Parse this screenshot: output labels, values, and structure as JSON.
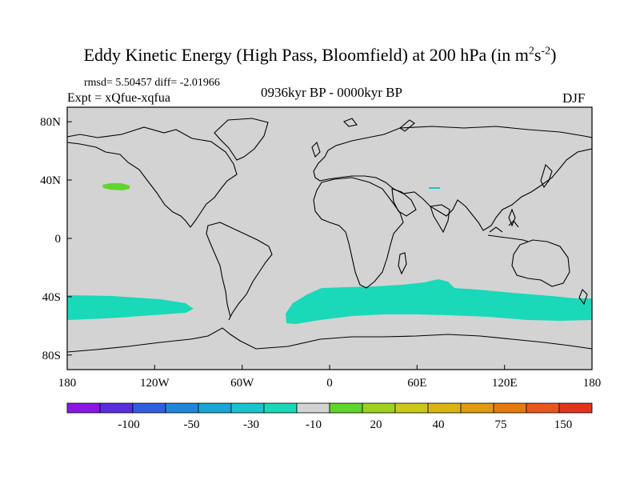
{
  "title": {
    "text": "Eddy Kinetic Energy (High Pass, Bloomfield) at 200 hPa (in m",
    "sup1": "2",
    "mid": "s",
    "sup2": "-2",
    "end": ")"
  },
  "stats": {
    "rmsd_line": "rmsd= 5.50457 diff= -2.01966",
    "expt_line": "Expt = xQfue-xqfua",
    "period": "0936kyr BP - 0000kyr BP",
    "season": "DJF"
  },
  "axes": {
    "lon_labels": [
      "180",
      "120W",
      "60W",
      "0",
      "60E",
      "120E",
      "180"
    ],
    "lat_labels": [
      "80N",
      "40N",
      "0",
      "40S",
      "80S"
    ]
  },
  "legend": {
    "colors": [
      "#8a16e6",
      "#5a2ee0",
      "#2f5fe0",
      "#1f86dc",
      "#18a6d8",
      "#17c4cf",
      "#19d9b8",
      "#d3d3d3",
      "#5ed62a",
      "#9ed21c",
      "#ccc81a",
      "#dcb410",
      "#e09a0e",
      "#e67a0e",
      "#e9571a",
      "#e2341a"
    ],
    "labels": [
      "-100",
      "-50",
      "-30",
      "-10",
      "20",
      "40",
      "75",
      "150"
    ]
  },
  "colors": {
    "land_ocean_fill": "#d3d3d3",
    "negative_anomaly": "#19d9b8",
    "positive_anomaly": "#5ed62a",
    "small_negative": "#17c4cf"
  }
}
